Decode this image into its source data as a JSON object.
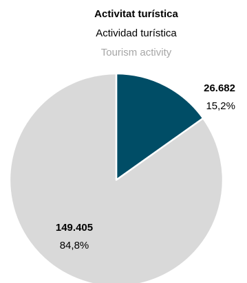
{
  "chart_data": {
    "type": "pie",
    "title_lines": [
      "Activitat turística",
      "Actividad turística",
      "Tourism activity"
    ],
    "slices": [
      {
        "value": 26682,
        "value_label": "26.682",
        "percent_label": "15,2%",
        "color": "#004d66"
      },
      {
        "value": 149405,
        "value_label": "149.405",
        "percent_label": "84,8%",
        "color": "#d9d9d9"
      }
    ],
    "start_angle_deg": 0,
    "direction": "clockwise",
    "slice_border_color": "#ffffff"
  }
}
